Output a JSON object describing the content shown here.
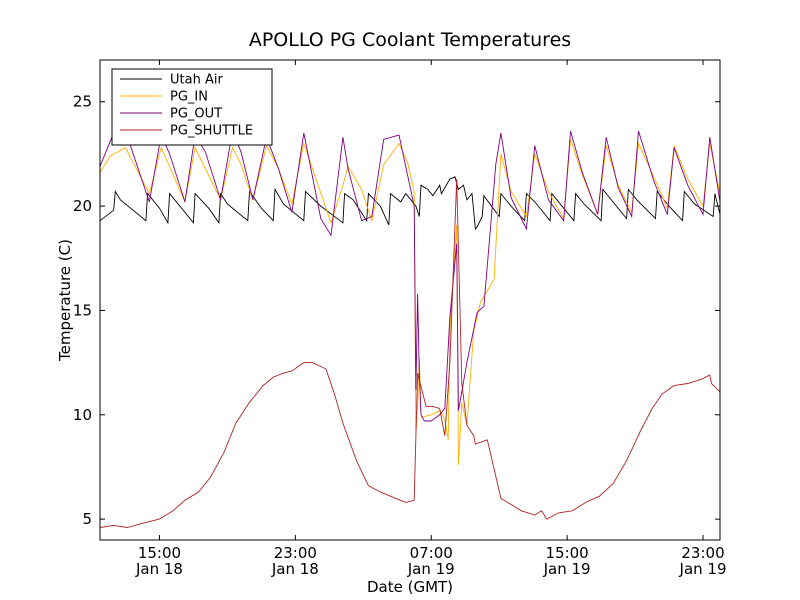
{
  "chart_data": {
    "type": "line",
    "title": "APOLLO PG Coolant Temperatures",
    "xlabel": "Date (GMT)",
    "ylabel": "Temperature (C)",
    "xlim": [
      11.0,
      47.5
    ],
    "ylim": [
      4.0,
      27.0
    ],
    "grid": false,
    "legend_position": "top-left",
    "x_unit": "hours since Jan 18 00:00 GMT",
    "x_ticks": [
      {
        "value": 14.5,
        "line1": "15:00",
        "line2": "Jan 18"
      },
      {
        "value": 22.5,
        "line1": "23:00",
        "line2": "Jan 18"
      },
      {
        "value": 30.5,
        "line1": "07:00",
        "line2": "Jan 19"
      },
      {
        "value": 38.5,
        "line1": "15:00",
        "line2": "Jan 19"
      },
      {
        "value": 46.5,
        "line1": "23:00",
        "line2": "Jan 19"
      }
    ],
    "y_ticks": [
      5,
      10,
      15,
      20,
      25
    ],
    "series": [
      {
        "name": "Utah Air",
        "color": "#000000",
        "x": [
          11.0,
          11.8,
          11.9,
          12.2,
          13.7,
          13.8,
          14.5,
          15.0,
          15.1,
          15.6,
          16.5,
          16.6,
          17.4,
          18.0,
          18.1,
          18.5,
          19.7,
          19.8,
          20.5,
          21.2,
          21.3,
          21.8,
          23.0,
          23.1,
          24.0,
          25.3,
          25.4,
          25.9,
          26.7,
          26.8,
          27.5,
          28.0,
          28.1,
          28.7,
          29.0,
          29.3,
          29.6,
          29.8,
          29.9,
          30.3,
          30.6,
          31.0,
          31.1,
          31.6,
          31.9,
          32.1,
          32.4,
          32.6,
          32.9,
          33.1,
          33.2,
          33.5,
          33.6,
          34.5,
          34.6,
          35.3,
          36.0,
          36.1,
          36.6,
          37.5,
          37.6,
          38.3,
          38.9,
          39.0,
          39.5,
          40.5,
          40.6,
          41.3,
          42.0,
          42.1,
          42.6,
          43.7,
          43.8,
          44.5,
          45.3,
          45.4,
          46.0,
          47.1,
          47.2,
          47.5
        ],
        "values": [
          19.3,
          19.8,
          20.7,
          20.3,
          19.3,
          20.6,
          19.9,
          19.2,
          20.6,
          20.1,
          19.2,
          20.6,
          19.9,
          19.2,
          20.6,
          20.1,
          19.3,
          20.7,
          19.9,
          19.3,
          20.8,
          20.1,
          19.3,
          20.7,
          20.0,
          19.2,
          20.6,
          20.3,
          19.3,
          20.6,
          20.0,
          19.1,
          20.6,
          20.2,
          20.6,
          20.3,
          20.0,
          19.5,
          21.0,
          20.8,
          20.5,
          21.0,
          20.6,
          21.3,
          21.4,
          20.8,
          21.0,
          20.3,
          20.6,
          18.9,
          19.0,
          19.5,
          20.5,
          19.5,
          20.6,
          19.9,
          19.3,
          20.6,
          20.2,
          19.3,
          20.6,
          19.9,
          19.3,
          20.6,
          20.1,
          19.3,
          20.8,
          20.1,
          19.4,
          20.8,
          20.3,
          19.4,
          20.7,
          20.0,
          19.3,
          20.7,
          20.1,
          19.5,
          20.6,
          19.6
        ]
      },
      {
        "name": "PG_IN",
        "color": "#ffb000",
        "x": [
          11.0,
          11.6,
          12.5,
          13.9,
          14.6,
          15.1,
          16.0,
          16.6,
          17.2,
          18.1,
          18.8,
          19.3,
          20.0,
          20.8,
          21.5,
          22.3,
          23.0,
          24.6,
          25.3,
          25.6,
          26.4,
          27.0,
          27.7,
          28.6,
          29.1,
          29.5,
          29.6,
          29.7,
          29.8,
          29.9,
          30.0,
          30.5,
          31.0,
          31.3,
          31.5,
          31.6,
          32.0,
          32.1,
          32.3,
          32.6,
          33.0,
          33.4,
          34.2,
          34.6,
          35.2,
          36.1,
          36.6,
          37.4,
          38.3,
          38.7,
          39.4,
          40.3,
          40.8,
          41.5,
          42.3,
          42.7,
          43.6,
          44.4,
          44.8,
          45.6,
          46.5,
          46.9,
          47.5
        ],
        "values": [
          21.6,
          22.4,
          22.8,
          20.6,
          22.8,
          21.9,
          20.2,
          22.8,
          21.8,
          20.3,
          22.8,
          22.0,
          20.3,
          22.9,
          21.8,
          20.1,
          23.0,
          19.2,
          21.0,
          21.9,
          20.8,
          19.3,
          22.0,
          23.0,
          22.1,
          20.7,
          9.1,
          10.4,
          12.7,
          10.0,
          9.9,
          10.0,
          10.2,
          9.8,
          8.8,
          14.1,
          19.1,
          7.6,
          10.6,
          9.5,
          14.0,
          15.4,
          16.5,
          22.5,
          20.7,
          19.5,
          22.5,
          20.7,
          19.4,
          23.2,
          21.5,
          19.6,
          22.9,
          21.0,
          19.7,
          23.0,
          21.4,
          19.9,
          22.9,
          21.3,
          20.0,
          23.0,
          20.6
        ]
      },
      {
        "name": "PG_OUT",
        "color": "#800080",
        "x": [
          11.0,
          11.7,
          12.5,
          13.9,
          14.6,
          15.1,
          16.0,
          16.6,
          17.2,
          18.1,
          18.8,
          19.3,
          20.0,
          20.8,
          21.5,
          22.3,
          23.0,
          24.0,
          24.6,
          25.3,
          25.6,
          26.4,
          27.0,
          27.7,
          28.6,
          29.1,
          29.5,
          29.6,
          29.7,
          29.8,
          29.9,
          30.1,
          30.5,
          31.0,
          31.3,
          31.5,
          31.6,
          32.0,
          32.1,
          32.3,
          32.6,
          33.0,
          33.2,
          33.6,
          34.3,
          34.6,
          35.2,
          36.1,
          36.6,
          37.4,
          38.3,
          38.7,
          39.4,
          40.3,
          40.8,
          41.5,
          42.3,
          42.7,
          43.6,
          44.4,
          44.8,
          45.6,
          46.5,
          46.9,
          47.5
        ],
        "values": [
          21.9,
          23.3,
          23.6,
          20.2,
          23.4,
          22.5,
          20.2,
          23.4,
          22.6,
          20.3,
          23.6,
          22.6,
          20.3,
          23.3,
          21.8,
          19.7,
          23.5,
          19.4,
          18.6,
          23.3,
          21.8,
          19.3,
          19.5,
          23.2,
          23.4,
          21.5,
          20.0,
          11.2,
          15.8,
          12.0,
          10.0,
          9.7,
          9.7,
          10.0,
          10.3,
          13.2,
          14.7,
          18.2,
          10.2,
          11.1,
          12.5,
          14.1,
          14.9,
          15.2,
          22.0,
          23.5,
          20.4,
          18.9,
          22.9,
          20.3,
          19.3,
          23.6,
          21.6,
          19.6,
          23.3,
          20.9,
          19.5,
          23.6,
          21.2,
          19.6,
          22.8,
          21.0,
          19.6,
          23.3,
          20.2
        ]
      },
      {
        "name": "PG_SHUTTLE",
        "color": "#b22222",
        "x": [
          11.0,
          11.8,
          12.6,
          13.5,
          14.5,
          15.3,
          16.0,
          16.8,
          17.5,
          18.3,
          19.0,
          19.8,
          20.6,
          21.2,
          21.8,
          22.3,
          23.0,
          23.5,
          24.3,
          24.8,
          25.3,
          26.1,
          26.8,
          27.5,
          28.4,
          29.0,
          29.5,
          29.6,
          29.7,
          30.2,
          30.6,
          31.0,
          31.3,
          31.6,
          32.0,
          32.3,
          32.6,
          33.0,
          33.1,
          33.8,
          34.6,
          35.2,
          35.8,
          36.2,
          36.6,
          37.0,
          37.3,
          38.0,
          38.8,
          39.6,
          40.4,
          41.2,
          42.0,
          42.8,
          43.5,
          44.1,
          44.8,
          45.6,
          46.4,
          46.9,
          47.0,
          47.5
        ],
        "values": [
          4.6,
          4.7,
          4.6,
          4.8,
          5.0,
          5.4,
          5.9,
          6.3,
          7.0,
          8.2,
          9.6,
          10.6,
          11.4,
          11.8,
          12.0,
          12.1,
          12.5,
          12.5,
          12.2,
          11.0,
          9.6,
          7.8,
          6.6,
          6.3,
          6.0,
          5.8,
          5.9,
          9.0,
          12.0,
          10.4,
          10.4,
          10.3,
          9.0,
          12.5,
          21.3,
          11.5,
          9.5,
          9.0,
          8.6,
          8.8,
          6.0,
          5.7,
          5.4,
          5.3,
          5.2,
          5.4,
          5.0,
          5.3,
          5.4,
          5.8,
          6.1,
          6.7,
          7.8,
          9.2,
          10.3,
          11.0,
          11.4,
          11.5,
          11.7,
          11.9,
          11.5,
          11.1
        ]
      }
    ]
  }
}
